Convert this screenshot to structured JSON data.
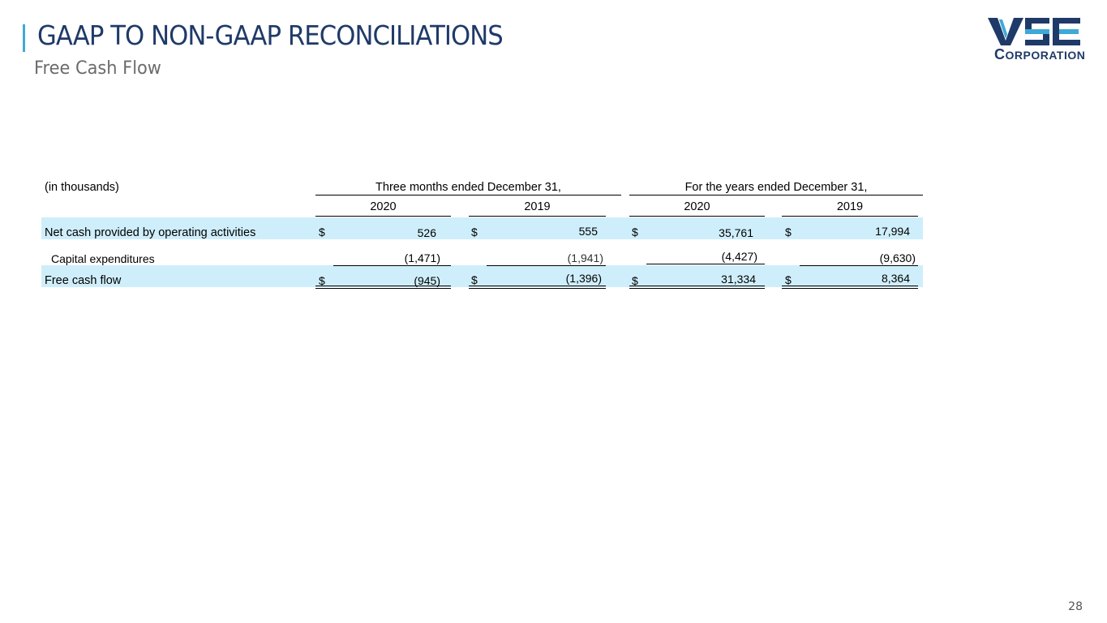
{
  "header": {
    "title": "GAAP TO NON-GAAP RECONCILIATIONS",
    "subtitle": "Free Cash Flow"
  },
  "logo": {
    "initial": "C",
    "rest": "ORPORATION",
    "mark": "VSE",
    "accent_color": "#3fa9d6",
    "brand_color": "#1f3a68"
  },
  "table": {
    "units_label": "(in thousands)",
    "group_headers": [
      "Three months ended December 31,",
      "For the years ended December 31,"
    ],
    "years": [
      "2020",
      "2019",
      "2020",
      "2019"
    ],
    "rows": [
      {
        "label": "Net cash provided by operating activities",
        "dollar": "$",
        "values": [
          "526",
          "555",
          "35,761",
          "17,994"
        ]
      },
      {
        "label": "Capital expenditures",
        "dollar": "",
        "values": [
          "(1,471)",
          "(1,941)",
          "(4,427)",
          "(9,630)"
        ]
      },
      {
        "label": "Free cash flow",
        "dollar": "$",
        "values": [
          "(945)",
          "(1,396)",
          "31,334",
          "8,364"
        ]
      }
    ],
    "highlight_color": "#cfeefb"
  },
  "page_number": "28"
}
